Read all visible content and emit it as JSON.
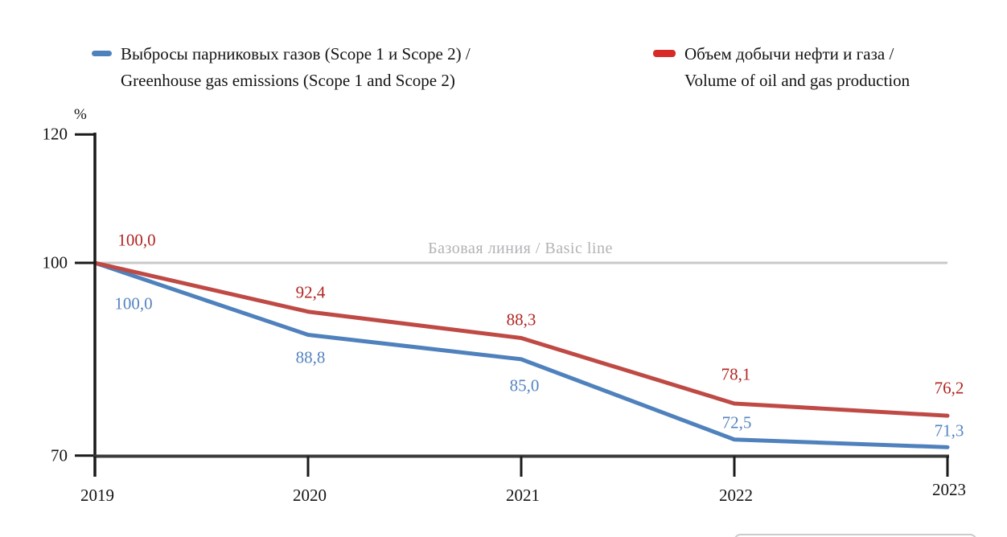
{
  "page": {
    "background": "#ffffff"
  },
  "legend": {
    "position": "top",
    "items": [
      {
        "line1": "Выбросы парниковых газов (Scope 1 и Scope 2) /",
        "line2": "Greenhouse gas emissions (Scope 1 and Scope 2)",
        "marker_color": "#4f81bd"
      },
      {
        "line1": "Объем добычи нефти и газа /",
        "line2": "Volume of oil and gas production",
        "marker_color": "#d62b27"
      }
    ]
  },
  "chart_data": {
    "type": "line",
    "x": [
      "2019",
      "2020",
      "2021",
      "2022",
      "2023"
    ],
    "ylabel": "%",
    "yticks": [
      120,
      100,
      70
    ],
    "ylim": [
      70,
      120
    ],
    "grid": false,
    "legend_position": "top",
    "baseline": {
      "value": 100,
      "label": "Базовая линия / Basic line",
      "line_color": "#c9c9c9",
      "label_color": "#b2b2b8"
    },
    "series": [
      {
        "name": "Выбросы парниковых газов (Scope 1 и Scope 2) / Greenhouse gas emissions (Scope 1 and Scope 2)",
        "values": [
          100.0,
          88.8,
          85.0,
          72.5,
          71.3
        ],
        "labels": [
          "100,0",
          "88,8",
          "85,0",
          "72,5",
          "71,3"
        ],
        "line_color": "#4f81bd",
        "label_color": "#5584c0"
      },
      {
        "name": "Объем добычи нефти и газа / Volume of oil and gas production",
        "values": [
          100.0,
          92.4,
          88.3,
          78.1,
          76.2
        ],
        "labels": [
          "100,0",
          "92,4",
          "88,3",
          "78,1",
          "76,2"
        ],
        "line_color": "#bf4a45",
        "label_color": "#b02622"
      }
    ],
    "axis_color": "#1a1a1a",
    "x_axis_color": "#3a3a3a"
  }
}
